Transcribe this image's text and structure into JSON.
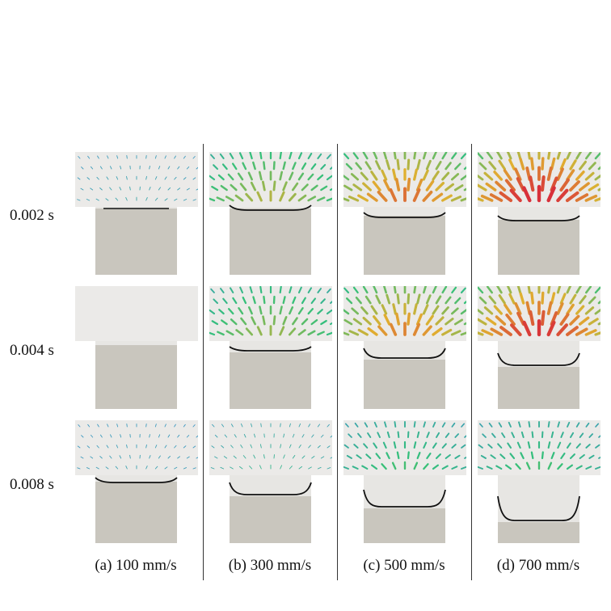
{
  "row_labels": [
    "0.002 s",
    "0.004 s",
    "0.008 s"
  ],
  "column_labels": [
    "(a) 100 mm/s",
    "(b) 300 mm/s",
    "(c) 500 mm/s",
    "(d) 700 mm/s"
  ],
  "colors": {
    "panel_background": "#ebeae8",
    "fluid_fill": "#e7e6e3",
    "solid_block": "#c9c6be",
    "interface_line": "#111111",
    "vector_low": "#3f8fd0",
    "vector_mid": "#34c07a",
    "vector_high": "#e0b030",
    "vector_max": "#d8303a",
    "separator": "#333333"
  },
  "panels": [
    {
      "column": 0,
      "row": 0,
      "block_top_fraction": 0.46,
      "interface_depth": 0,
      "vector_intensity": 0.15
    },
    {
      "column": 1,
      "row": 0,
      "block_top_fraction": 0.46,
      "interface_depth": 0.01,
      "vector_intensity": 0.55
    },
    {
      "column": 2,
      "row": 0,
      "block_top_fraction": 0.52,
      "interface_depth": 0.01,
      "vector_intensity": 0.8
    },
    {
      "column": 3,
      "row": 0,
      "block_top_fraction": 0.55,
      "interface_depth": 0.02,
      "vector_intensity": 1.0
    },
    {
      "column": 0,
      "row": 1,
      "block_top_fraction": 0.48,
      "interface_depth": 0,
      "vector_intensity": 0.0
    },
    {
      "column": 1,
      "row": 1,
      "block_top_fraction": 0.54,
      "interface_depth": 0.03,
      "vector_intensity": 0.5
    },
    {
      "column": 2,
      "row": 1,
      "block_top_fraction": 0.6,
      "interface_depth": 0.08,
      "vector_intensity": 0.75
    },
    {
      "column": 3,
      "row": 1,
      "block_top_fraction": 0.66,
      "interface_depth": 0.1,
      "vector_intensity": 0.95
    },
    {
      "column": 0,
      "row": 2,
      "block_top_fraction": 0.5,
      "interface_depth": 0.02,
      "vector_intensity": 0.12
    },
    {
      "column": 1,
      "row": 2,
      "block_top_fraction": 0.62,
      "interface_depth": 0.1,
      "vector_intensity": 0.25
    },
    {
      "column": 2,
      "row": 2,
      "block_top_fraction": 0.72,
      "interface_depth": 0.14,
      "vector_intensity": 0.35
    },
    {
      "column": 3,
      "row": 2,
      "block_top_fraction": 0.83,
      "interface_depth": 0.2,
      "vector_intensity": 0.35
    }
  ]
}
